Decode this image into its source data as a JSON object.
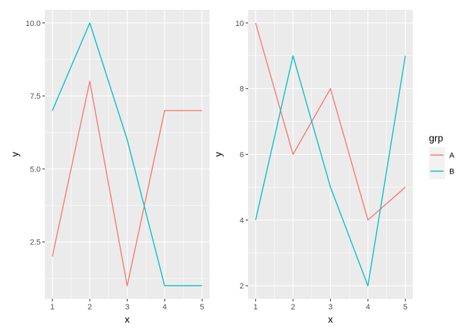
{
  "chart_data": [
    {
      "type": "line",
      "xlabel": "x",
      "ylabel": "y",
      "x": [
        1,
        2,
        3,
        4,
        5
      ],
      "xlim": [
        0.8,
        5.2
      ],
      "ylim": [
        0.55,
        10.45
      ],
      "x_ticks": [
        1,
        2,
        3,
        4,
        5
      ],
      "y_ticks": [
        2.5,
        5.0,
        7.5,
        10.0
      ],
      "y_tick_labels": [
        "2.5",
        "5.0",
        "7.5",
        "10.0"
      ],
      "grid": true,
      "series": [
        {
          "name": "A",
          "values": [
            2,
            8,
            1,
            7,
            7
          ]
        },
        {
          "name": "B",
          "values": [
            7,
            10,
            6,
            1,
            1
          ]
        }
      ]
    },
    {
      "type": "line",
      "xlabel": "x",
      "ylabel": "y",
      "x": [
        1,
        2,
        3,
        4,
        5
      ],
      "xlim": [
        0.8,
        5.2
      ],
      "ylim": [
        1.6,
        10.4
      ],
      "x_ticks": [
        1,
        2,
        3,
        4,
        5
      ],
      "y_ticks": [
        2,
        4,
        6,
        8,
        10
      ],
      "y_tick_labels": [
        "2",
        "4",
        "6",
        "8",
        "10"
      ],
      "grid": true,
      "series": [
        {
          "name": "A",
          "values": [
            10,
            6,
            8,
            4,
            5
          ]
        },
        {
          "name": "B",
          "values": [
            4,
            9,
            5,
            2,
            9
          ]
        }
      ]
    }
  ],
  "legend": {
    "title": "grp",
    "placement": "right",
    "items": [
      {
        "label": "A",
        "color": "#F8766D"
      },
      {
        "label": "B",
        "color": "#00BFC4"
      }
    ]
  },
  "colors": {
    "A": "#F8766D",
    "B": "#00BFC4",
    "panel_background": "#EBEBEB",
    "grid": "#FFFFFF"
  }
}
